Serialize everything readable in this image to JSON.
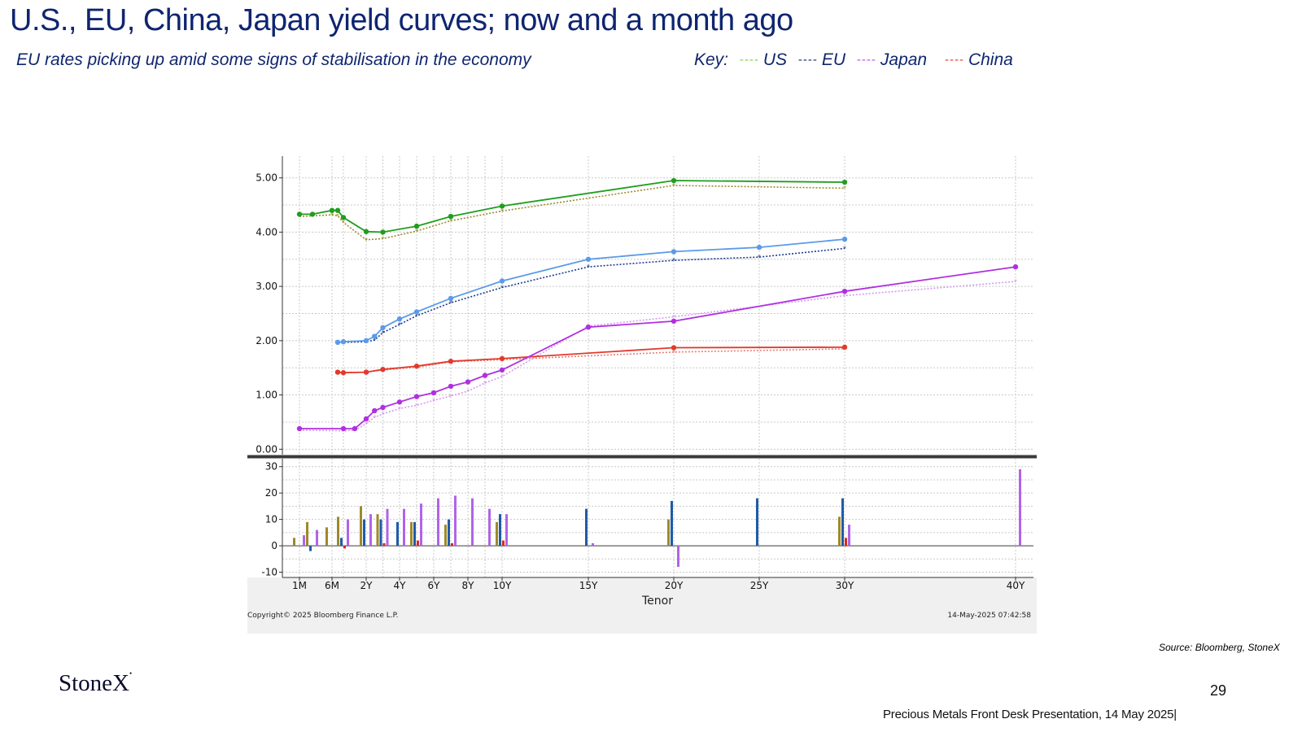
{
  "slide": {
    "title": "U.S., EU, China, Japan yield curves; now and a month ago",
    "subtitle": "EU rates picking up amid some signs of stabilisation in the economy",
    "key_label": "Key:",
    "key": [
      {
        "dash": "----",
        "name": "US",
        "color": "#7ccf4a"
      },
      {
        "dash": "----",
        "name": "EU",
        "color": "#1a2a6c"
      },
      {
        "dash": "----",
        "name": "Japan",
        "color": "#b44be8"
      },
      {
        "dash": "----",
        "name": "China",
        "color": "#e23a2c"
      }
    ],
    "source": "Source: Bloomberg, StoneX",
    "logo": "StoneX",
    "page_number": "29",
    "footer": "Precious Metals Front Desk Presentation, 14 May 2025|"
  },
  "chart_data": {
    "type": "line",
    "xlabel": "Tenor",
    "copyright": "Copyright© 2025 Bloomberg Finance L.P.",
    "timestamp": "14-May-2025 07:42:58",
    "x_ticks": [
      {
        "label": "1M",
        "t": 0.083
      },
      {
        "label": "6M",
        "t": 0.5
      },
      {
        "label": "2Y",
        "t": 2
      },
      {
        "label": "4Y",
        "t": 4
      },
      {
        "label": "6Y",
        "t": 6
      },
      {
        "label": "8Y",
        "t": 8
      },
      {
        "label": "10Y",
        "t": 10
      },
      {
        "label": "15Y",
        "t": 15
      },
      {
        "label": "20Y",
        "t": 20
      },
      {
        "label": "25Y",
        "t": 25
      },
      {
        "label": "30Y",
        "t": 30
      },
      {
        "label": "40Y",
        "t": 40
      }
    ],
    "yield_panel": {
      "yticks": [
        "5.00",
        "4.00",
        "3.00",
        "2.00",
        "1.00",
        "0.00"
      ],
      "ylim": [
        -0.1,
        5.4
      ],
      "series": [
        {
          "name": "US",
          "color": "#1f9e1f",
          "prior_color": "#9c8a2a",
          "points": [
            [
              0.083,
              4.33
            ],
            [
              0.25,
              4.33
            ],
            [
              0.5,
              4.4
            ],
            [
              0.75,
              4.4
            ],
            [
              1,
              4.27
            ],
            [
              2,
              4.01
            ],
            [
              3,
              4.0
            ],
            [
              5,
              4.11
            ],
            [
              7,
              4.29
            ],
            [
              10,
              4.48
            ],
            [
              20,
              4.95
            ],
            [
              30,
              4.92
            ]
          ],
          "prior": [
            [
              0.083,
              4.29
            ],
            [
              0.25,
              4.3
            ],
            [
              0.5,
              4.32
            ],
            [
              0.75,
              4.3
            ],
            [
              1,
              4.18
            ],
            [
              2,
              3.86
            ],
            [
              3,
              3.88
            ],
            [
              5,
              4.02
            ],
            [
              7,
              4.21
            ],
            [
              10,
              4.39
            ],
            [
              20,
              4.86
            ],
            [
              30,
              4.81
            ]
          ]
        },
        {
          "name": "EU",
          "color": "#5b9be8",
          "prior_color": "#1a3a8c",
          "points": [
            [
              0.75,
              1.97
            ],
            [
              1,
              1.98
            ],
            [
              2,
              2.0
            ],
            [
              2.5,
              2.08
            ],
            [
              3,
              2.24
            ],
            [
              4,
              2.4
            ],
            [
              5,
              2.53
            ],
            [
              7,
              2.78
            ],
            [
              10,
              3.1
            ],
            [
              15,
              3.5
            ],
            [
              20,
              3.64
            ],
            [
              25,
              3.72
            ],
            [
              30,
              3.87
            ]
          ],
          "prior": [
            [
              0.75,
              1.96
            ],
            [
              1,
              1.97
            ],
            [
              2,
              1.98
            ],
            [
              2.5,
              2.01
            ],
            [
              3,
              2.15
            ],
            [
              4,
              2.3
            ],
            [
              5,
              2.46
            ],
            [
              7,
              2.7
            ],
            [
              10,
              2.98
            ],
            [
              15,
              3.36
            ],
            [
              20,
              3.48
            ],
            [
              25,
              3.54
            ],
            [
              30,
              3.7
            ]
          ]
        },
        {
          "name": "China",
          "color": "#e23a2c",
          "prior_color": "#e77c72",
          "points": [
            [
              0.75,
              1.42
            ],
            [
              1,
              1.41
            ],
            [
              2,
              1.42
            ],
            [
              3,
              1.47
            ],
            [
              5,
              1.53
            ],
            [
              7,
              1.62
            ],
            [
              10,
              1.67
            ],
            [
              20,
              1.87
            ],
            [
              30,
              1.88
            ]
          ],
          "prior": [
            [
              0.75,
              1.42
            ],
            [
              1,
              1.41
            ],
            [
              2,
              1.42
            ],
            [
              3,
              1.46
            ],
            [
              5,
              1.51
            ],
            [
              7,
              1.61
            ],
            [
              10,
              1.65
            ],
            [
              20,
              1.79
            ],
            [
              30,
              1.85
            ]
          ]
        },
        {
          "name": "Japan",
          "color": "#b030e0",
          "prior_color": "#d49aee",
          "points": [
            [
              0.083,
              0.38
            ],
            [
              1,
              0.38
            ],
            [
              1.5,
              0.38
            ],
            [
              2,
              0.56
            ],
            [
              2.5,
              0.71
            ],
            [
              3,
              0.77
            ],
            [
              4,
              0.87
            ],
            [
              5,
              0.97
            ],
            [
              6,
              1.04
            ],
            [
              7,
              1.16
            ],
            [
              8,
              1.24
            ],
            [
              9,
              1.36
            ],
            [
              10,
              1.46
            ],
            [
              15,
              2.25
            ],
            [
              20,
              2.36
            ],
            [
              30,
              2.91
            ],
            [
              40,
              3.36
            ]
          ],
          "prior": [
            [
              0.083,
              0.35
            ],
            [
              1,
              0.34
            ],
            [
              1.5,
              0.35
            ],
            [
              2,
              0.47
            ],
            [
              2.5,
              0.59
            ],
            [
              3,
              0.65
            ],
            [
              4,
              0.75
            ],
            [
              5,
              0.81
            ],
            [
              6,
              0.9
            ],
            [
              7,
              0.98
            ],
            [
              8,
              1.07
            ],
            [
              9,
              1.22
            ],
            [
              10,
              1.34
            ],
            [
              15,
              2.27
            ],
            [
              20,
              2.44
            ],
            [
              30,
              2.83
            ],
            [
              40,
              3.09
            ]
          ]
        }
      ]
    },
    "change_panel": {
      "yticks": [
        "30",
        "20",
        "10",
        "0",
        "-10"
      ],
      "ylim": [
        -12,
        33
      ],
      "series_colors": {
        "US": "#9c8a2a",
        "EU": "#1e5ba8",
        "China": "#d82a1e",
        "Japan": "#b064e8"
      },
      "bars": [
        {
          "t": 0.083,
          "US": 3,
          "EU": 0,
          "China": 0,
          "Japan": 4
        },
        {
          "t": 0.25,
          "US": 9,
          "EU": -2,
          "China": 0,
          "Japan": 6
        },
        {
          "t": 0.5,
          "US": 7,
          "EU": 0,
          "China": 0,
          "Japan": 0
        },
        {
          "t": 1,
          "US": 11,
          "EU": 3,
          "China": -1,
          "Japan": 10
        },
        {
          "t": 2,
          "US": 15,
          "EU": 10,
          "China": 0,
          "Japan": 12
        },
        {
          "t": 3,
          "US": 12,
          "EU": 10,
          "China": 1,
          "Japan": 14
        },
        {
          "t": 4,
          "US": 0,
          "EU": 9,
          "China": 0,
          "Japan": 14
        },
        {
          "t": 5,
          "US": 9,
          "EU": 9,
          "China": 2,
          "Japan": 16
        },
        {
          "t": 6,
          "US": 0,
          "EU": 0,
          "China": 0,
          "Japan": 18
        },
        {
          "t": 7,
          "US": 8,
          "EU": 10,
          "China": 1,
          "Japan": 19
        },
        {
          "t": 8,
          "US": 0,
          "EU": 0,
          "China": 0,
          "Japan": 18
        },
        {
          "t": 9,
          "US": 0,
          "EU": 0,
          "China": 0,
          "Japan": 14
        },
        {
          "t": 10,
          "US": 9,
          "EU": 12,
          "China": 2,
          "Japan": 12
        },
        {
          "t": 15,
          "US": 0,
          "EU": 14,
          "China": 0,
          "Japan": 1
        },
        {
          "t": 20,
          "US": 10,
          "EU": 17,
          "China": 0,
          "Japan": -8
        },
        {
          "t": 25,
          "US": 0,
          "EU": 18,
          "China": 0,
          "Japan": 0
        },
        {
          "t": 30,
          "US": 11,
          "EU": 18,
          "China": 3,
          "Japan": 8
        },
        {
          "t": 40,
          "US": 0,
          "EU": 0,
          "China": 0,
          "Japan": 29
        }
      ]
    }
  }
}
